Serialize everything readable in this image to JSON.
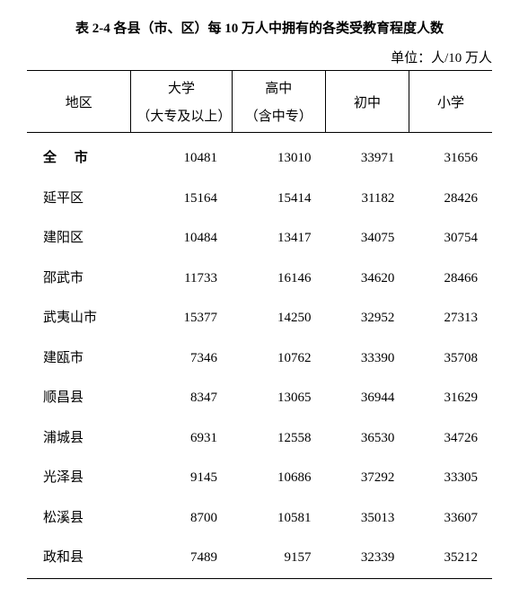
{
  "title": "表 2-4 各县（市、区）每 10 万人中拥有的各类受教育程度人数",
  "unit": "单位：人/10 万人",
  "columns": {
    "region": "地区",
    "univ_main": "大学",
    "univ_sub": "（大专及以上）",
    "high_main": "高中",
    "high_sub": "（含中专）",
    "middle": "初中",
    "primary": "小学"
  },
  "rows": [
    {
      "region": "全 市",
      "univ": "10481",
      "high": "13010",
      "middle": "33971",
      "primary": "31656"
    },
    {
      "region": "延平区",
      "univ": "15164",
      "high": "15414",
      "middle": "31182",
      "primary": "28426"
    },
    {
      "region": "建阳区",
      "univ": "10484",
      "high": "13417",
      "middle": "34075",
      "primary": "30754"
    },
    {
      "region": "邵武市",
      "univ": "11733",
      "high": "16146",
      "middle": "34620",
      "primary": "28466"
    },
    {
      "region": "武夷山市",
      "univ": "15377",
      "high": "14250",
      "middle": "32952",
      "primary": "27313"
    },
    {
      "region": "建瓯市",
      "univ": "7346",
      "high": "10762",
      "middle": "33390",
      "primary": "35708"
    },
    {
      "region": "顺昌县",
      "univ": "8347",
      "high": "13065",
      "middle": "36944",
      "primary": "31629"
    },
    {
      "region": "浦城县",
      "univ": "6931",
      "high": "12558",
      "middle": "36530",
      "primary": "34726"
    },
    {
      "region": "光泽县",
      "univ": "9145",
      "high": "10686",
      "middle": "37292",
      "primary": "33305"
    },
    {
      "region": "松溪县",
      "univ": "8700",
      "high": "10581",
      "middle": "35013",
      "primary": "33607"
    },
    {
      "region": "政和县",
      "univ": "7489",
      "high": "9157",
      "middle": "32339",
      "primary": "35212"
    }
  ]
}
